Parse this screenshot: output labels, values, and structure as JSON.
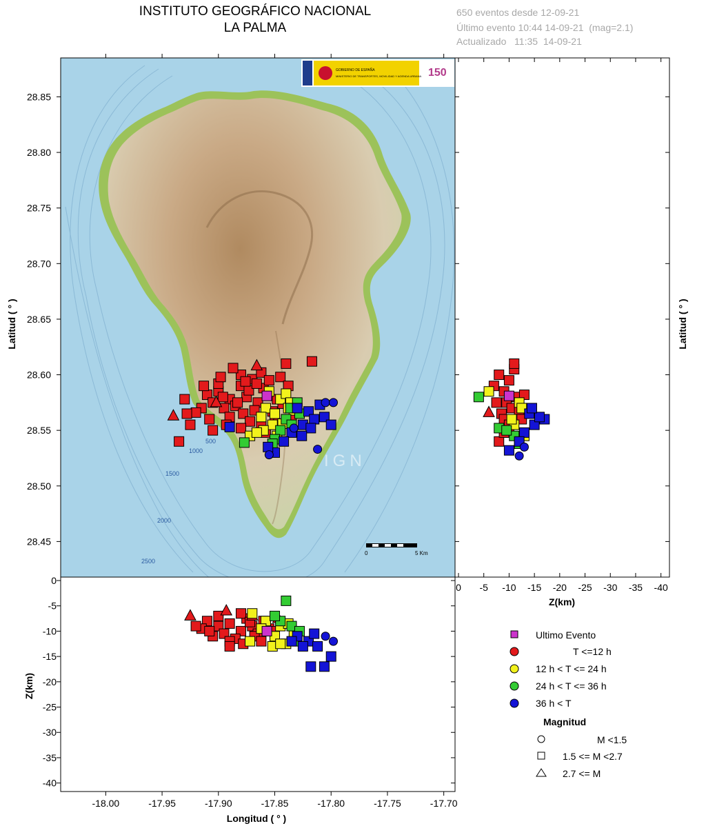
{
  "header": {
    "title_line1": "INSTITUTO GEOGRÁFICO NACIONAL",
    "title_line2": "LA PALMA",
    "info_line1": "650 eventos desde 12-09-21",
    "info_line2": "Último evento 10:44 14-09-21  (mag=2.1)",
    "info_line3": "Actualizado   11:35  14-09-21"
  },
  "logos": {
    "gov_text1": "GOBIERNO DE ESPAÑA",
    "gov_text2": "MINISTERIO DE TRANSPORTES, MOVILIDAD Y AGENDA URBANA",
    "anniv_text": "150"
  },
  "map": {
    "watermark": "IGN",
    "contours": [
      "500",
      "1000",
      "1500",
      "2000",
      "2500"
    ],
    "scalebar_start": "0",
    "scalebar_end": "5 Km",
    "colors": {
      "sea": "#a9d3e8",
      "coast": "#9cc25a",
      "land": "#cbb89a",
      "peaks": "#b08a60"
    }
  },
  "legend": {
    "items": [
      {
        "label": "Ultimo Evento",
        "color": "#cc33cc"
      },
      {
        "label": "T <=12 h",
        "color": "#e31a1c"
      },
      {
        "label": "12 h  < T <= 24 h",
        "color": "#f2f21c"
      },
      {
        "label": "24 h  < T <= 36 h",
        "color": "#33cc33"
      },
      {
        "label": "36 h <  T",
        "color": "#1414d6"
      }
    ],
    "mag_title": "Magnitud",
    "mag_items": [
      {
        "label": "M <1.5",
        "shape": "circle"
      },
      {
        "label": "1.5 <= M <2.7",
        "shape": "square"
      },
      {
        "label": "2.7 <= M",
        "shape": "triangle"
      }
    ]
  },
  "chart_data": [
    {
      "type": "scatter",
      "panel": "map",
      "xlabel": "",
      "ylabel": "Latitud ( ° )",
      "xlim": [
        -18.04,
        -17.69
      ],
      "ylim": [
        28.418,
        28.885
      ],
      "yticks": [
        "28.45",
        "28.50",
        "28.55",
        "28.60",
        "28.65",
        "28.70",
        "28.75",
        "28.80",
        "28.85"
      ],
      "series": [
        {
          "name": "T <=12 h",
          "points": [
            [
              -17.91,
              28.582
            ],
            [
              -17.9,
              28.585
            ],
            [
              -17.89,
              28.578
            ],
            [
              -17.88,
              28.59
            ],
            [
              -17.87,
              28.596
            ],
            [
              -17.86,
              28.588
            ],
            [
              -17.895,
              28.57
            ],
            [
              -17.905,
              28.575
            ],
            [
              -17.885,
              28.572
            ],
            [
              -17.875,
              28.58
            ],
            [
              -17.865,
              28.575
            ],
            [
              -17.89,
              28.562
            ],
            [
              -17.878,
              28.565
            ],
            [
              -17.868,
              28.568
            ],
            [
              -17.915,
              28.57
            ],
            [
              -17.92,
              28.566
            ],
            [
              -17.9,
              28.592
            ],
            [
              -17.88,
              28.6
            ],
            [
              -17.862,
              28.602
            ],
            [
              -17.855,
              28.595
            ],
            [
              -17.872,
              28.558
            ],
            [
              -17.85,
              28.562
            ],
            [
              -17.908,
              28.56
            ],
            [
              -17.893,
              28.555
            ],
            [
              -17.845,
              28.598
            ],
            [
              -17.84,
              28.61
            ],
            [
              -17.817,
              28.612
            ],
            [
              -17.93,
              28.578
            ],
            [
              -17.925,
              28.555
            ],
            [
              -17.88,
              28.552
            ],
            [
              -17.862,
              28.556
            ],
            [
              -17.852,
              28.567
            ],
            [
              -17.898,
              28.598
            ],
            [
              -17.887,
              28.606
            ],
            [
              -17.873,
              28.586
            ],
            [
              -17.913,
              28.59
            ],
            [
              -17.858,
              28.548
            ],
            [
              -17.835,
              28.56
            ],
            [
              -17.843,
              28.574
            ],
            [
              -17.883,
              28.575
            ],
            [
              -17.905,
              28.55
            ],
            [
              -17.935,
              28.54
            ],
            [
              -17.928,
              28.565
            ],
            [
              -17.866,
              28.592
            ],
            [
              -17.848,
              28.578
            ],
            [
              -17.838,
              28.59
            ],
            [
              -17.896,
              28.58
            ],
            [
              -17.876,
              28.594
            ]
          ],
          "shape": "square"
        },
        {
          "name": "T <=12 h",
          "points": [
            [
              -17.94,
              28.563
            ],
            [
              -17.866,
              28.608
            ],
            [
              -17.848,
              28.56
            ],
            [
              -17.902,
              28.575
            ]
          ],
          "shape": "triangle"
        },
        {
          "name": "12 h  < T <= 24 h",
          "points": [
            [
              -17.858,
              28.57
            ],
            [
              -17.85,
              28.565
            ],
            [
              -17.845,
              28.578
            ],
            [
              -17.84,
              28.583
            ],
            [
              -17.852,
              28.555
            ],
            [
              -17.862,
              28.562
            ],
            [
              -17.848,
              28.545
            ],
            [
              -17.838,
              28.57
            ],
            [
              -17.833,
              28.568
            ],
            [
              -17.855,
              28.585
            ],
            [
              -17.872,
              28.545
            ],
            [
              -17.843,
              28.556
            ],
            [
              -17.86,
              28.55
            ],
            [
              -17.866,
              28.548
            ],
            [
              -17.836,
              28.575
            ]
          ],
          "shape": "square"
        },
        {
          "name": "24 h  < T <= 36 h",
          "points": [
            [
              -17.84,
              28.56
            ],
            [
              -17.835,
              28.555
            ],
            [
              -17.828,
              28.565
            ],
            [
              -17.845,
              28.55
            ],
            [
              -17.85,
              28.542
            ],
            [
              -17.836,
              28.57
            ],
            [
              -17.852,
              28.538
            ],
            [
              -17.877,
              28.539
            ],
            [
              -17.83,
              28.575
            ]
          ],
          "shape": "square"
        },
        {
          "name": "36 h <  T",
          "points": [
            [
              -17.83,
              28.57
            ],
            [
              -17.82,
              28.567
            ],
            [
              -17.815,
              28.56
            ],
            [
              -17.81,
              28.573
            ],
            [
              -17.825,
              28.555
            ],
            [
              -17.835,
              28.548
            ],
            [
              -17.842,
              28.54
            ],
            [
              -17.85,
              28.53
            ],
            [
              -17.856,
              28.535
            ],
            [
              -17.818,
              28.552
            ],
            [
              -17.806,
              28.562
            ],
            [
              -17.8,
              28.555
            ],
            [
              -17.826,
              28.545
            ],
            [
              -17.89,
              28.553
            ]
          ],
          "shape": "square"
        },
        {
          "name": "36 h <  T",
          "points": [
            [
              -17.805,
              28.575
            ],
            [
              -17.798,
              28.575
            ],
            [
              -17.812,
              28.533
            ],
            [
              -17.855,
              28.528
            ],
            [
              -17.833,
              28.552
            ]
          ],
          "shape": "circle"
        },
        {
          "name": "Ultimo Evento",
          "points": [
            [
              -17.857,
              28.581
            ]
          ],
          "shape": "square"
        }
      ]
    },
    {
      "type": "scatter",
      "panel": "depth-latitude",
      "xlabel": "Z(km)",
      "ylabel": "Latitud ( ° )",
      "xlim": [
        0,
        -41
      ],
      "ylim": [
        28.418,
        28.885
      ],
      "xticks": [
        "0",
        "-5",
        "-10",
        "-15",
        "-20",
        "-25",
        "-30",
        "-35",
        "-40"
      ],
      "series": [
        {
          "name": "T <=12 h",
          "points": [
            [
              -7,
              28.59
            ],
            [
              -8,
              28.6
            ],
            [
              -9,
              28.585
            ],
            [
              -10,
              28.595
            ],
            [
              -11,
              28.605
            ],
            [
              -9.5,
              28.575
            ],
            [
              -10.5,
              28.57
            ],
            [
              -8.5,
              28.565
            ],
            [
              -11.5,
              28.58
            ],
            [
              -12,
              28.568
            ],
            [
              -7.5,
              28.575
            ],
            [
              -9,
              28.56
            ],
            [
              -10,
              28.555
            ],
            [
              -11,
              28.61
            ],
            [
              -12.5,
              28.56
            ],
            [
              -8,
              28.54
            ],
            [
              -13,
              28.582
            ],
            [
              -10,
              28.548
            ],
            [
              -9,
              28.548
            ]
          ],
          "shape": "square"
        },
        {
          "name": "T <=12 h",
          "points": [
            [
              -6,
              28.566
            ]
          ],
          "shape": "triangle"
        },
        {
          "name": "12 h  < T <= 24 h",
          "points": [
            [
              -6,
              28.585
            ],
            [
              -12,
              28.575
            ],
            [
              -11,
              28.555
            ],
            [
              -13,
              28.545
            ],
            [
              -10.5,
              28.56
            ],
            [
              -12.5,
              28.57
            ]
          ],
          "shape": "square"
        },
        {
          "name": "24 h  < T <= 36 h",
          "points": [
            [
              -4,
              28.58
            ],
            [
              -8,
              28.552
            ],
            [
              -11,
              28.545
            ],
            [
              -12,
              28.538
            ],
            [
              -9.5,
              28.55
            ]
          ],
          "shape": "square"
        },
        {
          "name": "36 h <  T",
          "points": [
            [
              -14,
              28.565
            ],
            [
              -15,
              28.555
            ],
            [
              -17,
              28.56
            ],
            [
              -16,
              28.562
            ],
            [
              -13,
              28.548
            ],
            [
              -12,
              28.54
            ],
            [
              -10,
              28.532
            ],
            [
              -14.5,
              28.57
            ]
          ],
          "shape": "square"
        },
        {
          "name": "36 h <  T",
          "points": [
            [
              -12,
              28.527
            ],
            [
              -13,
              28.535
            ]
          ],
          "shape": "circle"
        },
        {
          "name": "Ultimo Evento",
          "points": [
            [
              -10,
              28.581
            ]
          ],
          "shape": "square"
        }
      ]
    },
    {
      "type": "scatter",
      "panel": "longitude-depth",
      "xlabel": "Longitud ( ° )",
      "ylabel": "Z(km)",
      "xlim": [
        -18.04,
        -17.69
      ],
      "ylim": [
        -41,
        0
      ],
      "xticks": [
        "-18.00",
        "-17.95",
        "-17.90",
        "-17.85",
        "-17.80",
        "-17.75",
        "-17.70"
      ],
      "yticks": [
        "0",
        "-5",
        "-10",
        "-15",
        "-20",
        "-25",
        "-30",
        "-35",
        "-40"
      ],
      "series": [
        {
          "name": "T <=12 h",
          "points": [
            [
              -17.91,
              -8
            ],
            [
              -17.9,
              -9
            ],
            [
              -17.89,
              -8.5
            ],
            [
              -17.88,
              -10
            ],
            [
              -17.87,
              -9
            ],
            [
              -17.86,
              -8
            ],
            [
              -17.895,
              -10.5
            ],
            [
              -17.905,
              -11
            ],
            [
              -17.885,
              -11.5
            ],
            [
              -17.875,
              -7.5
            ],
            [
              -17.865,
              -10.5
            ],
            [
              -17.89,
              -12
            ],
            [
              -17.878,
              -12.5
            ],
            [
              -17.868,
              -11
            ],
            [
              -17.915,
              -9.5
            ],
            [
              -17.9,
              -7
            ],
            [
              -17.88,
              -6.5
            ],
            [
              -17.862,
              -12
            ],
            [
              -17.855,
              -9.5
            ],
            [
              -17.89,
              -13
            ],
            [
              -17.908,
              -10
            ],
            [
              -17.872,
              -8.2
            ],
            [
              -17.85,
              -10
            ],
            [
              -17.92,
              -9
            ]
          ],
          "shape": "square"
        },
        {
          "name": "T <=12 h",
          "points": [
            [
              -17.925,
              -7
            ],
            [
              -17.893,
              -6
            ],
            [
              -17.847,
              -7.5
            ],
            [
              -17.87,
              -7
            ]
          ],
          "shape": "triangle"
        },
        {
          "name": "12 h  < T <= 24 h",
          "points": [
            [
              -17.858,
              -8
            ],
            [
              -17.85,
              -11
            ],
            [
              -17.845,
              -9
            ],
            [
              -17.84,
              -12.5
            ],
            [
              -17.852,
              -13
            ],
            [
              -17.862,
              -9.5
            ],
            [
              -17.872,
              -12
            ],
            [
              -17.87,
              -6.5
            ],
            [
              -17.838,
              -8.5
            ],
            [
              -17.833,
              -10.5
            ],
            [
              -17.845,
              -12.5
            ]
          ],
          "shape": "square"
        },
        {
          "name": "24 h  < T <= 36 h",
          "points": [
            [
              -17.84,
              -4
            ],
            [
              -17.835,
              -9
            ],
            [
              -17.828,
              -10
            ],
            [
              -17.845,
              -8
            ],
            [
              -17.83,
              -12
            ],
            [
              -17.85,
              -7
            ]
          ],
          "shape": "square"
        },
        {
          "name": "36 h <  T",
          "points": [
            [
              -17.83,
              -11
            ],
            [
              -17.82,
              -12
            ],
            [
              -17.815,
              -10.5
            ],
            [
              -17.825,
              -13
            ],
            [
              -17.818,
              -17
            ],
            [
              -17.806,
              -17
            ],
            [
              -17.8,
              -15
            ],
            [
              -17.812,
              -13
            ],
            [
              -17.835,
              -12
            ]
          ],
          "shape": "square"
        },
        {
          "name": "36 h <  T",
          "points": [
            [
              -17.805,
              -11
            ],
            [
              -17.798,
              -12
            ]
          ],
          "shape": "circle"
        },
        {
          "name": "Ultimo Evento",
          "points": [
            [
              -17.857,
              -10
            ]
          ],
          "shape": "square"
        }
      ]
    }
  ]
}
